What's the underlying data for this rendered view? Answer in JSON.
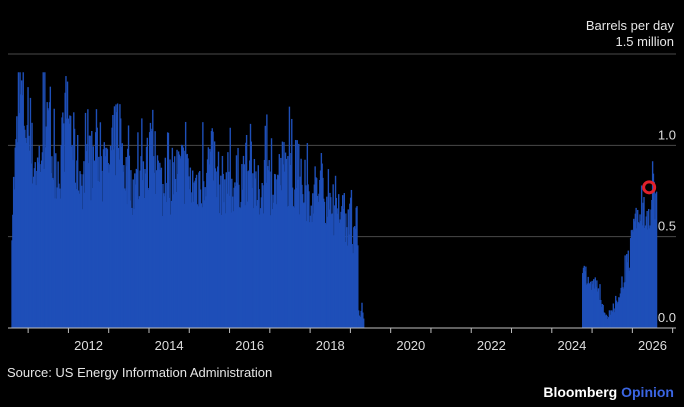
{
  "chart_data": {
    "type": "bar",
    "title": "",
    "xlabel": "",
    "ylabel": "Barrels per day",
    "y_top_label": "1.5 million",
    "ylim": [
      0,
      1.5
    ],
    "yticks": [
      {
        "value": 0.0,
        "label": "0.0"
      },
      {
        "value": 0.5,
        "label": "0.5"
      },
      {
        "value": 1.0,
        "label": "1.0"
      }
    ],
    "xlim": [
      "2010-07",
      "2027-02"
    ],
    "xticks": [
      "2012",
      "2014",
      "2016",
      "2018",
      "2020",
      "2022",
      "2024",
      "2026"
    ],
    "grid": true,
    "bar_color": "#1e4fb8",
    "highlight_color": "#e0202a",
    "highlight_point": {
      "x": "2026-06",
      "y": 0.77
    },
    "series": [
      {
        "frequency": "weekly",
        "segments": [
          {
            "start": "2010-08",
            "end": "2011-06",
            "values": [
              0.6,
              0.95,
              1.25,
              1.15,
              1.0,
              0.9,
              0.85,
              0.95,
              1.1
            ]
          },
          {
            "start": "2011-06",
            "end": "2013-06",
            "values": [
              1.05,
              0.9,
              0.85,
              1.2,
              0.9,
              0.8,
              0.85,
              0.95,
              0.8,
              0.9,
              1.1,
              0.8
            ]
          },
          {
            "start": "2013-06",
            "end": "2016-01",
            "values": [
              0.8,
              0.75,
              0.85,
              0.9,
              0.7,
              0.8,
              0.85,
              0.75,
              0.8,
              0.9,
              0.75,
              0.8
            ]
          },
          {
            "start": "2016-01",
            "end": "2018-06",
            "values": [
              0.75,
              0.8,
              0.85,
              0.7,
              0.8,
              0.75,
              0.85,
              0.8,
              0.75,
              0.7,
              0.75,
              0.7
            ]
          },
          {
            "start": "2018-06",
            "end": "2019-03",
            "values": [
              0.6,
              0.65,
              0.55,
              0.6,
              0.55,
              0.5,
              0.55
            ]
          },
          {
            "start": "2019-03",
            "end": "2019-05",
            "values": [
              0.15,
              0.05,
              0.1,
              0.0
            ]
          },
          {
            "start": "2024-10",
            "end": "2026-08",
            "values": [
              0.3,
              0.2,
              0.25,
              0.15,
              0.05,
              0.1,
              0.15,
              0.3,
              0.45,
              0.55,
              0.6,
              0.65,
              0.75
            ]
          }
        ]
      }
    ]
  },
  "labels": {
    "unit_line1": "Barrels per day",
    "unit_line2": "1.5 million"
  },
  "footer": {
    "source": "Source: US Energy Information Administration",
    "brand_name": "Bloomberg",
    "brand_sub": "Opinion"
  }
}
